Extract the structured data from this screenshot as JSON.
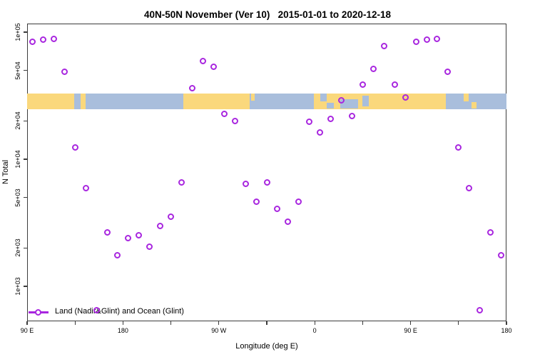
{
  "title": "40N-50N November (Ver 10)   2015-01-01 to 2020-12-18",
  "legend": {
    "label": "Land (Nadir&Glint) and Ocean (Glint)"
  },
  "colors": {
    "marker": "#A826DF",
    "land": "#FAD87C",
    "ocean": "#A9BEDC",
    "axis": "#3c3c3c"
  },
  "chart_data": {
    "type": "scatter",
    "title": "40N-50N November (Ver 10)   2015-01-01 to 2020-12-18",
    "xlabel": "Longitude (deg E)",
    "ylabel": "N Total",
    "grid": false,
    "legend_position": "bottom-left",
    "series_name": "Land (Nadir&Glint) and Ocean (Glint)",
    "marker": {
      "shape": "open-circle",
      "color": "#A826DF"
    },
    "x_axis": {
      "note": "longitude axis wraps eastward: 90E -> 180 -> 90W -> 0 -> 90E -> 180 (axis coord 90..540)",
      "min": 90,
      "max": 540,
      "major_ticks": [
        90,
        180,
        270,
        360,
        450,
        540
      ],
      "major_tick_labels": [
        "90 E",
        "180",
        "90 W",
        "0",
        "90 E",
        "180"
      ],
      "minor_ticks": [
        135,
        225,
        315,
        405,
        495
      ]
    },
    "y_axis": {
      "scale": "log10",
      "min": 530,
      "max": 117000,
      "ticks": [
        100000,
        50000,
        20000,
        10000,
        5000,
        2000,
        1000
      ],
      "tick_labels": [
        "1e+05",
        "5e+04",
        "2e+04",
        "1e+04",
        "5e+03",
        "2e+03",
        "1e+03"
      ]
    },
    "points": [
      [
        95,
        84500
      ],
      [
        105,
        87000
      ],
      [
        115,
        87900
      ],
      [
        125,
        48500
      ],
      [
        135,
        12450
      ],
      [
        145,
        5890
      ],
      [
        155,
        650
      ],
      [
        165,
        2670
      ],
      [
        175,
        1745
      ],
      [
        185,
        2380
      ],
      [
        195,
        2510
      ],
      [
        205,
        2060
      ],
      [
        215,
        2970
      ],
      [
        225,
        3510
      ],
      [
        235,
        6530
      ],
      [
        245,
        36400
      ],
      [
        255,
        59600
      ],
      [
        265,
        53700
      ],
      [
        275,
        22600
      ],
      [
        285,
        20100
      ],
      [
        295,
        6440
      ],
      [
        305,
        4660
      ],
      [
        315,
        6530
      ],
      [
        325,
        4090
      ],
      [
        335,
        3240
      ],
      [
        345,
        4660
      ],
      [
        355,
        19600
      ],
      [
        365,
        16300
      ],
      [
        375,
        20900
      ],
      [
        385,
        28900
      ],
      [
        395,
        22000
      ],
      [
        405,
        38400
      ],
      [
        415,
        51600
      ],
      [
        425,
        78200
      ],
      [
        435,
        38400
      ],
      [
        445,
        30800
      ],
      [
        455,
        84500
      ],
      [
        465,
        87000
      ],
      [
        475,
        87900
      ],
      [
        485,
        48500
      ],
      [
        495,
        12450
      ],
      [
        505,
        5890
      ],
      [
        515,
        650
      ],
      [
        525,
        2670
      ],
      [
        535,
        1745
      ]
    ],
    "map_band": {
      "description": "40N-50N latitude strip world map drawn across plot, value range approx 25000-33000",
      "land_color": "#FAD87C",
      "ocean_color": "#A9BEDC",
      "segments": [
        {
          "from": 90,
          "to": 134.5,
          "type": "land",
          "name": "asia-east"
        },
        {
          "from": 134.5,
          "to": 140,
          "type": "ocean",
          "name": "sea-of-japan"
        },
        {
          "from": 140,
          "to": 145,
          "type": "land",
          "name": "japan"
        },
        {
          "from": 145,
          "to": 236.5,
          "type": "ocean",
          "name": "pacific"
        },
        {
          "from": 236.5,
          "to": 299,
          "type": "land",
          "name": "north-america"
        },
        {
          "from": 299,
          "to": 359,
          "type": "ocean",
          "name": "atlantic"
        },
        {
          "from": 359,
          "to": 483,
          "type": "land",
          "name": "eurasia"
        },
        {
          "from": 483,
          "to": 540,
          "type": "ocean",
          "name": "pacific-west"
        }
      ],
      "patches": [
        {
          "from": 300,
          "to": 303.5,
          "type": "land",
          "v0": 0,
          "v1": 0.45,
          "name": "newfoundland"
        },
        {
          "from": 365,
          "to": 371,
          "type": "ocean",
          "v0": 0,
          "v1": 0.5,
          "name": "north-sea"
        },
        {
          "from": 371.5,
          "to": 378,
          "type": "ocean",
          "v0": 0.6,
          "v1": 1,
          "name": "mediterranean"
        },
        {
          "from": 384,
          "to": 401,
          "type": "ocean",
          "v0": 0.35,
          "v1": 1,
          "name": "black-sea"
        },
        {
          "from": 404.5,
          "to": 411,
          "type": "ocean",
          "v0": 0.15,
          "v1": 0.85,
          "name": "caspian-sea"
        },
        {
          "from": 500,
          "to": 504.5,
          "type": "land",
          "v0": 0,
          "v1": 0.5,
          "name": "kamchatka"
        },
        {
          "from": 507,
          "to": 512,
          "type": "land",
          "v0": 0.55,
          "v1": 1,
          "name": "hokkaido"
        }
      ]
    }
  }
}
